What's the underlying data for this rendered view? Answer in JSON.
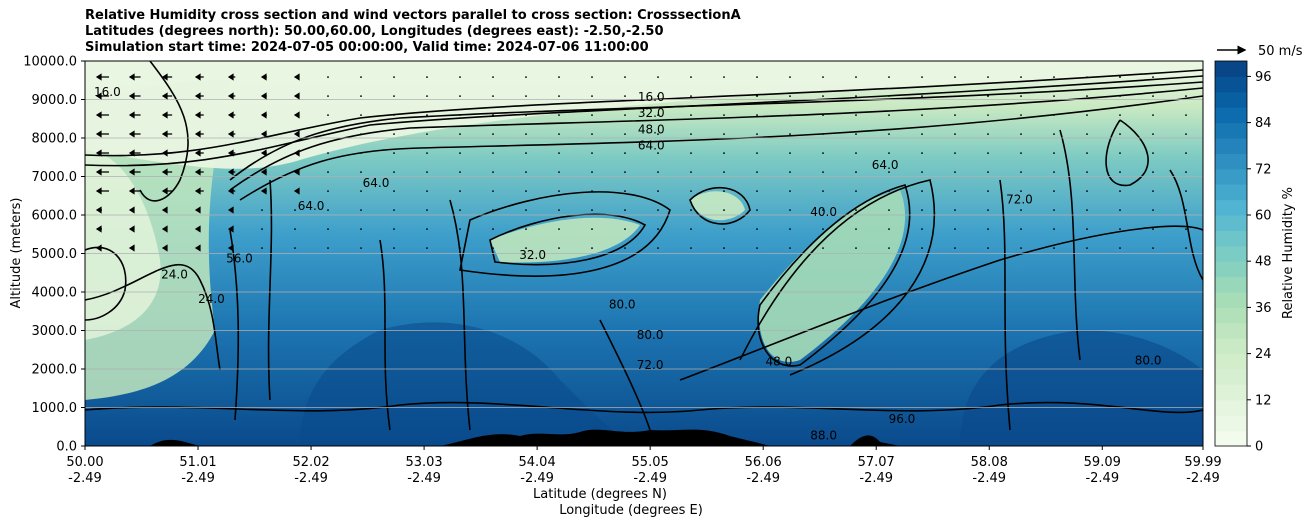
{
  "titles": [
    "Relative Humidity cross section and wind vectors parallel to cross section: CrosssectionA",
    "Latitudes (degrees north): 50.00,60.00, Longitudes (degrees east): -2.50,-2.50",
    "Simulation start time: 2024-07-05 00:00:00, Valid time: 2024-07-06 11:00:00"
  ],
  "chart_data": {
    "type": "heatmap",
    "ylabel": "Altitude (meters)",
    "xlabel_line1": "Latitude (degrees N)",
    "xlabel_line2": "Longitude (degrees E)",
    "ylim": [
      0,
      10000
    ],
    "yticks": [
      "0.0",
      "1000.0",
      "2000.0",
      "3000.0",
      "4000.0",
      "5000.0",
      "6000.0",
      "7000.0",
      "8000.0",
      "9000.0",
      "10000.0"
    ],
    "xticks": [
      {
        "lat": "50.00",
        "lon": "-2.49"
      },
      {
        "lat": "51.01",
        "lon": "-2.49"
      },
      {
        "lat": "52.02",
        "lon": "-2.49"
      },
      {
        "lat": "53.03",
        "lon": "-2.49"
      },
      {
        "lat": "54.04",
        "lon": "-2.49"
      },
      {
        "lat": "55.05",
        "lon": "-2.49"
      },
      {
        "lat": "56.06",
        "lon": "-2.49"
      },
      {
        "lat": "57.07",
        "lon": "-2.49"
      },
      {
        "lat": "58.08",
        "lon": "-2.49"
      },
      {
        "lat": "59.09",
        "lon": "-2.49"
      },
      {
        "lat": "59.99",
        "lon": "-2.49"
      }
    ],
    "grid": "horizontal",
    "colorbar": {
      "label": "Relative Humidity %",
      "range": [
        0,
        100
      ],
      "ticks": [
        "0",
        "12",
        "24",
        "36",
        "48",
        "60",
        "72",
        "84",
        "96"
      ],
      "colormap": [
        "#f7fcf0",
        "#e0f3db",
        "#ccebc5",
        "#a8ddb5",
        "#7bccc4",
        "#4eb3d3",
        "#2b8cbe",
        "#0868ac",
        "#084081"
      ]
    },
    "wind_key": {
      "label": "50 m/s"
    },
    "contour_labels": [
      {
        "text": "16.0",
        "x": 55.06,
        "y": 9070
      },
      {
        "text": "32.0",
        "x": 55.06,
        "y": 8650
      },
      {
        "text": "48.0",
        "x": 55.06,
        "y": 8220
      },
      {
        "text": "64.0",
        "x": 55.06,
        "y": 7810
      },
      {
        "text": "16.0",
        "x": 50.2,
        "y": 9200
      },
      {
        "text": "64.0",
        "x": 52.6,
        "y": 6830
      },
      {
        "text": "64.0",
        "x": 52.02,
        "y": 6240
      },
      {
        "text": "40.0",
        "x": 56.6,
        "y": 6080
      },
      {
        "text": "32.0",
        "x": 54.0,
        "y": 4960
      },
      {
        "text": "56.0",
        "x": 51.38,
        "y": 4870
      },
      {
        "text": "24.0",
        "x": 50.8,
        "y": 4450
      },
      {
        "text": "24.0",
        "x": 51.13,
        "y": 3820
      },
      {
        "text": "48.0",
        "x": 56.2,
        "y": 2190
      },
      {
        "text": "80.0",
        "x": 55.05,
        "y": 2880
      },
      {
        "text": "72.0",
        "x": 55.05,
        "y": 2110
      },
      {
        "text": "80.0",
        "x": 54.8,
        "y": 3680
      },
      {
        "text": "88.0",
        "x": 56.6,
        "y": 270
      },
      {
        "text": "96.0",
        "x": 57.3,
        "y": 700
      },
      {
        "text": "72.0",
        "x": 58.35,
        "y": 6400
      },
      {
        "text": "80.0",
        "x": 59.5,
        "y": 2220
      },
      {
        "text": "64.0",
        "x": 57.15,
        "y": 7300
      }
    ]
  }
}
